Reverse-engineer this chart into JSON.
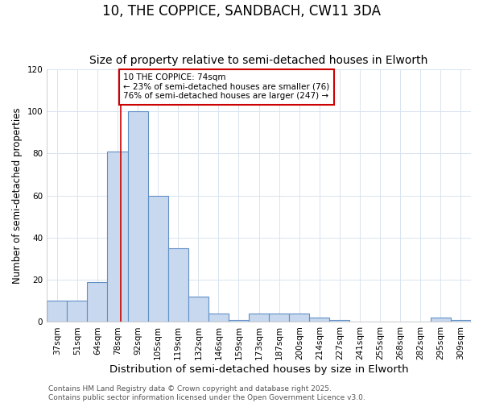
{
  "title": "10, THE COPPICE, SANDBACH, CW11 3DA",
  "subtitle": "Size of property relative to semi-detached houses in Elworth",
  "xlabel": "Distribution of semi-detached houses by size in Elworth",
  "ylabel": "Number of semi-detached properties",
  "categories": [
    "37sqm",
    "51sqm",
    "64sqm",
    "78sqm",
    "92sqm",
    "105sqm",
    "119sqm",
    "132sqm",
    "146sqm",
    "159sqm",
    "173sqm",
    "187sqm",
    "200sqm",
    "214sqm",
    "227sqm",
    "241sqm",
    "255sqm",
    "268sqm",
    "282sqm",
    "295sqm",
    "309sqm"
  ],
  "values": [
    10,
    10,
    19,
    81,
    100,
    60,
    35,
    12,
    4,
    1,
    4,
    4,
    4,
    2,
    1,
    0,
    0,
    0,
    0,
    2,
    1
  ],
  "bar_color": "#c8d8ee",
  "bar_edge_color": "#6090c8",
  "grid_color": "#d8e4f0",
  "background_color": "#ffffff",
  "annotation_text": "10 THE COPPICE: 74sqm\n← 23% of semi-detached houses are smaller (76)\n76% of semi-detached houses are larger (247) →",
  "annotation_box_color": "#ffffff",
  "annotation_box_edge_color": "#cc0000",
  "red_line_color": "#cc0000",
  "red_line_x": 3.15,
  "ylim": [
    0,
    120
  ],
  "yticks": [
    0,
    20,
    40,
    60,
    80,
    100,
    120
  ],
  "footer": "Contains HM Land Registry data © Crown copyright and database right 2025.\nContains public sector information licensed under the Open Government Licence v3.0.",
  "title_fontsize": 12,
  "subtitle_fontsize": 10,
  "xlabel_fontsize": 9.5,
  "ylabel_fontsize": 8.5,
  "tick_fontsize": 7.5,
  "annotation_fontsize": 7.5,
  "footer_fontsize": 6.5
}
